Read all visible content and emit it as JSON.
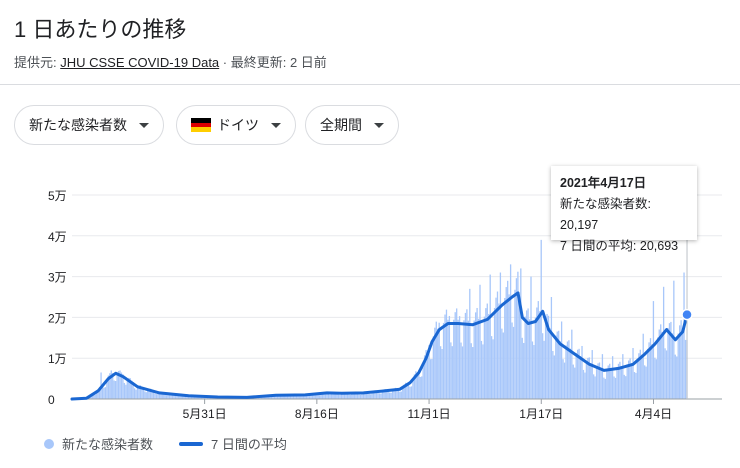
{
  "header": {
    "title": "1 日あたりの推移",
    "source_prefix": "提供元: ",
    "source_link": "JHU CSSE COVID-19 Data",
    "separator": " · ",
    "updated": "最終更新: 2 日前"
  },
  "filters": {
    "metric": "新たな感染者数",
    "country": "ドイツ",
    "period": "全期間"
  },
  "colors": {
    "bar": "#a8c7fa",
    "line": "#1a67d2",
    "flag_top": "#000000",
    "flag_mid": "#dd0000",
    "flag_bottom": "#ffce00"
  },
  "tooltip": {
    "date": "2021年4月17日",
    "cases_label": "新たな感染者数: ",
    "cases_value": "20,197",
    "avg_label": "7 日間の平均: ",
    "avg_value": "20,693"
  },
  "legend": {
    "cases": "新たな感染者数",
    "avg": "7 日間の平均"
  },
  "chart_data": {
    "type": "bar",
    "ylim": [
      0,
      50000
    ],
    "y_ticks": [
      0,
      10000,
      20000,
      30000,
      40000,
      50000
    ],
    "y_tick_labels": [
      "0",
      "1万",
      "2万",
      "3万",
      "4万",
      "5万"
    ],
    "x_range": [
      0,
      446
    ],
    "x_ticks": [
      {
        "day": 91,
        "label": "5月31日"
      },
      {
        "day": 168,
        "label": "8月16日"
      },
      {
        "day": 245,
        "label": "11月1日"
      },
      {
        "day": 322,
        "label": "1月17日"
      },
      {
        "day": 399,
        "label": "4月4日"
      }
    ],
    "series": [
      {
        "name": "7 日間の平均",
        "kind": "line",
        "points": [
          [
            0,
            0
          ],
          [
            10,
            200
          ],
          [
            18,
            2000
          ],
          [
            25,
            5000
          ],
          [
            30,
            6300
          ],
          [
            35,
            5500
          ],
          [
            45,
            3000
          ],
          [
            60,
            1500
          ],
          [
            80,
            800
          ],
          [
            100,
            500
          ],
          [
            120,
            400
          ],
          [
            140,
            900
          ],
          [
            160,
            1000
          ],
          [
            175,
            1500
          ],
          [
            185,
            1400
          ],
          [
            200,
            1500
          ],
          [
            215,
            2000
          ],
          [
            225,
            2400
          ],
          [
            232,
            4000
          ],
          [
            238,
            6500
          ],
          [
            243,
            10000
          ],
          [
            247,
            14000
          ],
          [
            252,
            17000
          ],
          [
            258,
            18500
          ],
          [
            265,
            18500
          ],
          [
            275,
            18200
          ],
          [
            285,
            19500
          ],
          [
            295,
            23000
          ],
          [
            302,
            25000
          ],
          [
            306,
            26000
          ],
          [
            309,
            20000
          ],
          [
            313,
            18500
          ],
          [
            318,
            19000
          ],
          [
            323,
            21500
          ],
          [
            327,
            17000
          ],
          [
            335,
            13500
          ],
          [
            345,
            11000
          ],
          [
            355,
            8500
          ],
          [
            365,
            7000
          ],
          [
            375,
            7500
          ],
          [
            385,
            8500
          ],
          [
            393,
            11000
          ],
          [
            400,
            13500
          ],
          [
            408,
            17000
          ],
          [
            414,
            14500
          ],
          [
            419,
            16500
          ],
          [
            422,
            20693
          ]
        ]
      },
      {
        "name": "新たな感染者数",
        "kind": "bars",
        "weekly_peaks": [
          [
            20,
            6500
          ],
          [
            27,
            7000
          ],
          [
            34,
            6500
          ],
          [
            41,
            4500
          ],
          [
            273,
            27000
          ],
          [
            280,
            28000
          ],
          [
            287,
            30500
          ],
          [
            294,
            31000
          ],
          [
            301,
            33000
          ],
          [
            308,
            32000
          ],
          [
            315,
            30000
          ],
          [
            322,
            39000
          ],
          [
            329,
            25000
          ],
          [
            336,
            19000
          ],
          [
            343,
            17000
          ],
          [
            350,
            13000
          ],
          [
            357,
            12000
          ],
          [
            364,
            11000
          ],
          [
            371,
            10500
          ],
          [
            378,
            11000
          ],
          [
            385,
            12500
          ],
          [
            392,
            16000
          ],
          [
            399,
            24000
          ],
          [
            406,
            27500
          ],
          [
            413,
            29000
          ],
          [
            420,
            31000
          ]
        ]
      }
    ]
  }
}
